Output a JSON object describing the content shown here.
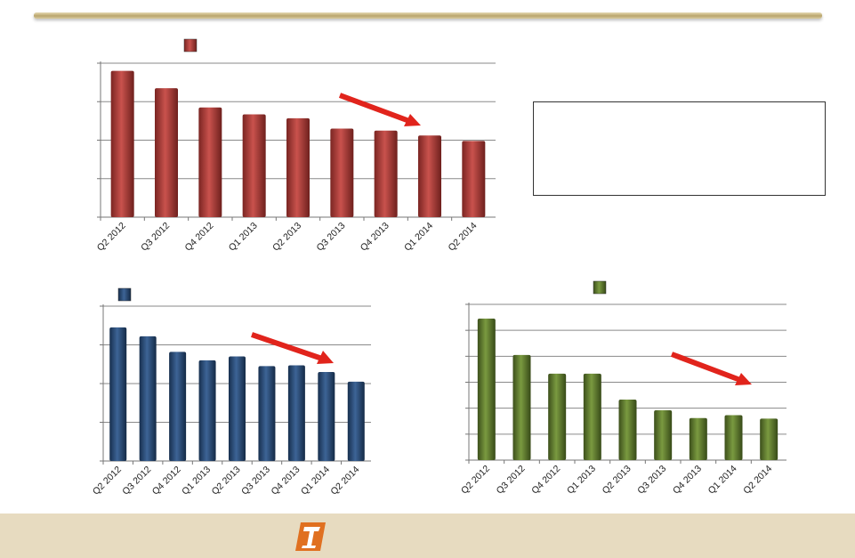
{
  "colors": {
    "series_red": "#a93a36",
    "series_blue": "#2a4a72",
    "series_green": "#59722c",
    "arrow": "#e1241c",
    "footer_band": "#e7dbc0",
    "logo_orange": "#e07020"
  },
  "footer": {
    "logo_icon": "company-logo-icon"
  },
  "chart_data": [
    {
      "type": "bar",
      "id": "top",
      "legend_marker": "square",
      "categories": [
        "Q2 2012",
        "Q3 2012",
        "Q4 2012",
        "Q1 2013",
        "Q2 2013",
        "Q3 2013",
        "Q4 2013",
        "Q1 2014",
        "Q2 2014"
      ],
      "values": [
        3.8,
        3.35,
        2.85,
        2.67,
        2.57,
        2.3,
        2.25,
        2.12,
        1.98
      ],
      "ylim": [
        0,
        4
      ],
      "gridlines": 4,
      "color": "#a93a36",
      "trend_arrow": "downward"
    },
    {
      "type": "bar",
      "id": "bottom-left",
      "legend_marker": "square",
      "categories": [
        "Q2 2012",
        "Q3 2012",
        "Q4 2012",
        "Q1 2013",
        "Q2 2013",
        "Q3 2013",
        "Q4 2013",
        "Q1 2014",
        "Q2 2014"
      ],
      "values": [
        3.45,
        3.22,
        2.82,
        2.6,
        2.7,
        2.45,
        2.47,
        2.3,
        2.05
      ],
      "ylim": [
        0,
        4
      ],
      "gridlines": 4,
      "color": "#2a4a72",
      "trend_arrow": "downward"
    },
    {
      "type": "bar",
      "id": "bottom-right",
      "legend_marker": "square",
      "categories": [
        "Q2 2012",
        "Q3 2012",
        "Q4 2012",
        "Q1 2013",
        "Q2 2013",
        "Q3 2013",
        "Q4 2013",
        "Q1 2014",
        "Q2 2014"
      ],
      "values": [
        5.45,
        4.05,
        3.33,
        3.33,
        2.33,
        1.92,
        1.62,
        1.73,
        1.6
      ],
      "ylim": [
        0,
        6
      ],
      "gridlines": 6,
      "color": "#59722c",
      "trend_arrow": "downward"
    }
  ]
}
